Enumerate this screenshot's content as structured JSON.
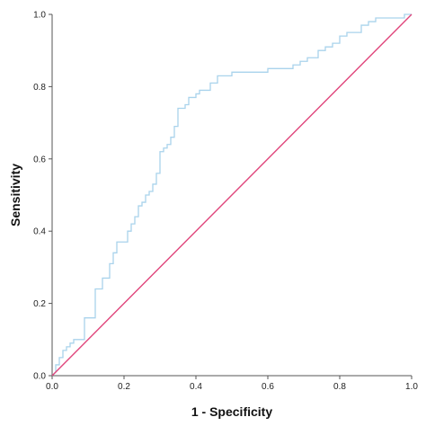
{
  "chart_data": {
    "type": "line",
    "xlabel": "1 - Specificity",
    "ylabel": "Sensitivity",
    "xlim": [
      0,
      1
    ],
    "ylim": [
      0,
      1
    ],
    "grid": false,
    "x_ticks": [
      "0.0",
      "0.2",
      "0.4",
      "0.6",
      "0.8",
      "1.0"
    ],
    "y_ticks": [
      "0.0",
      "0.2",
      "0.4",
      "0.6",
      "0.8",
      "1.0"
    ],
    "colors": {
      "roc": "#a9d3ec",
      "reference": "#e0457b",
      "axis": "#555555"
    },
    "series": [
      {
        "style": "roc-curve",
        "points": [
          [
            0.0,
            0.0
          ],
          [
            0.01,
            0.01
          ],
          [
            0.01,
            0.03
          ],
          [
            0.02,
            0.03
          ],
          [
            0.02,
            0.05
          ],
          [
            0.03,
            0.05
          ],
          [
            0.03,
            0.07
          ],
          [
            0.04,
            0.07
          ],
          [
            0.04,
            0.08
          ],
          [
            0.05,
            0.08
          ],
          [
            0.05,
            0.09
          ],
          [
            0.06,
            0.09
          ],
          [
            0.06,
            0.1
          ],
          [
            0.09,
            0.1
          ],
          [
            0.09,
            0.16
          ],
          [
            0.12,
            0.16
          ],
          [
            0.12,
            0.24
          ],
          [
            0.14,
            0.24
          ],
          [
            0.14,
            0.27
          ],
          [
            0.16,
            0.27
          ],
          [
            0.16,
            0.31
          ],
          [
            0.17,
            0.31
          ],
          [
            0.17,
            0.34
          ],
          [
            0.18,
            0.34
          ],
          [
            0.18,
            0.37
          ],
          [
            0.21,
            0.37
          ],
          [
            0.21,
            0.4
          ],
          [
            0.22,
            0.4
          ],
          [
            0.22,
            0.42
          ],
          [
            0.23,
            0.42
          ],
          [
            0.23,
            0.44
          ],
          [
            0.24,
            0.44
          ],
          [
            0.24,
            0.47
          ],
          [
            0.25,
            0.47
          ],
          [
            0.25,
            0.48
          ],
          [
            0.26,
            0.48
          ],
          [
            0.26,
            0.5
          ],
          [
            0.27,
            0.5
          ],
          [
            0.27,
            0.51
          ],
          [
            0.28,
            0.51
          ],
          [
            0.28,
            0.53
          ],
          [
            0.29,
            0.53
          ],
          [
            0.29,
            0.56
          ],
          [
            0.3,
            0.56
          ],
          [
            0.3,
            0.62
          ],
          [
            0.31,
            0.62
          ],
          [
            0.31,
            0.63
          ],
          [
            0.32,
            0.63
          ],
          [
            0.32,
            0.64
          ],
          [
            0.33,
            0.64
          ],
          [
            0.33,
            0.66
          ],
          [
            0.34,
            0.66
          ],
          [
            0.34,
            0.69
          ],
          [
            0.35,
            0.69
          ],
          [
            0.35,
            0.74
          ],
          [
            0.37,
            0.74
          ],
          [
            0.37,
            0.75
          ],
          [
            0.38,
            0.75
          ],
          [
            0.38,
            0.77
          ],
          [
            0.4,
            0.77
          ],
          [
            0.4,
            0.78
          ],
          [
            0.41,
            0.78
          ],
          [
            0.41,
            0.79
          ],
          [
            0.44,
            0.79
          ],
          [
            0.44,
            0.81
          ],
          [
            0.46,
            0.81
          ],
          [
            0.46,
            0.83
          ],
          [
            0.5,
            0.83
          ],
          [
            0.5,
            0.84
          ],
          [
            0.6,
            0.84
          ],
          [
            0.6,
            0.85
          ],
          [
            0.67,
            0.85
          ],
          [
            0.67,
            0.86
          ],
          [
            0.69,
            0.86
          ],
          [
            0.69,
            0.87
          ],
          [
            0.71,
            0.87
          ],
          [
            0.71,
            0.88
          ],
          [
            0.74,
            0.88
          ],
          [
            0.74,
            0.9
          ],
          [
            0.76,
            0.9
          ],
          [
            0.76,
            0.91
          ],
          [
            0.78,
            0.91
          ],
          [
            0.78,
            0.92
          ],
          [
            0.8,
            0.92
          ],
          [
            0.8,
            0.94
          ],
          [
            0.82,
            0.94
          ],
          [
            0.82,
            0.95
          ],
          [
            0.86,
            0.95
          ],
          [
            0.86,
            0.97
          ],
          [
            0.88,
            0.97
          ],
          [
            0.88,
            0.98
          ],
          [
            0.9,
            0.98
          ],
          [
            0.9,
            0.99
          ],
          [
            0.98,
            0.99
          ],
          [
            0.98,
            1.0
          ],
          [
            1.0,
            1.0
          ]
        ]
      },
      {
        "style": "reference-diagonal",
        "points": [
          [
            0,
            0
          ],
          [
            1,
            1
          ]
        ]
      }
    ]
  }
}
